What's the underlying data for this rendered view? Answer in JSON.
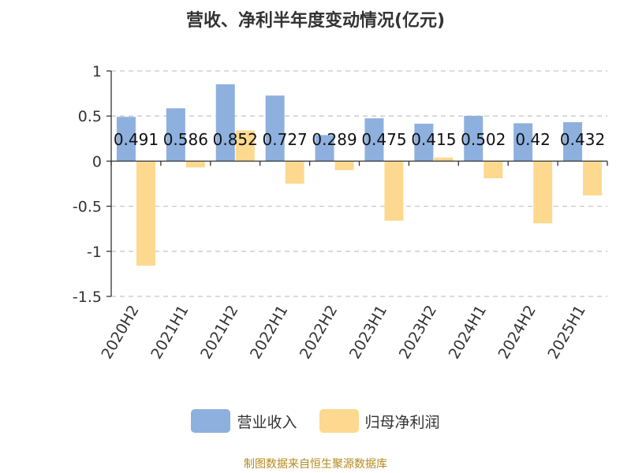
{
  "chart_data": {
    "type": "bar",
    "title": "营收、净利半年度变动情况(亿元)",
    "categories": [
      "2020H2",
      "2021H1",
      "2021H2",
      "2022H1",
      "2022H2",
      "2023H1",
      "2023H2",
      "2024H1",
      "2024H2",
      "2025H1"
    ],
    "series": [
      {
        "name": "营业收入",
        "color": "#8eb0de",
        "values": [
          0.491,
          0.586,
          0.852,
          0.727,
          0.289,
          0.475,
          0.415,
          0.502,
          0.42,
          0.432
        ],
        "labels": [
          "0.491",
          "0.586",
          "0.852",
          "0.727",
          "0.289",
          "0.475",
          "0.415",
          "0.502",
          "0.42",
          "0.432"
        ]
      },
      {
        "name": "归母净利润",
        "color": "#fdd98f",
        "values": [
          -1.16,
          -0.07,
          0.34,
          -0.25,
          -0.1,
          -0.66,
          0.04,
          -0.19,
          -0.69,
          -0.38
        ]
      }
    ],
    "ylim": [
      -1.5,
      1
    ],
    "yticks": [
      "-1.5",
      "-1",
      "-0.5",
      "0",
      "0.5",
      "1"
    ],
    "ytick_values": [
      -1.5,
      -1,
      -0.5,
      0,
      0.5,
      1
    ],
    "grid": true,
    "legend_position": "bottom-center",
    "source": "制图数据来自恒生聚源数据库"
  }
}
